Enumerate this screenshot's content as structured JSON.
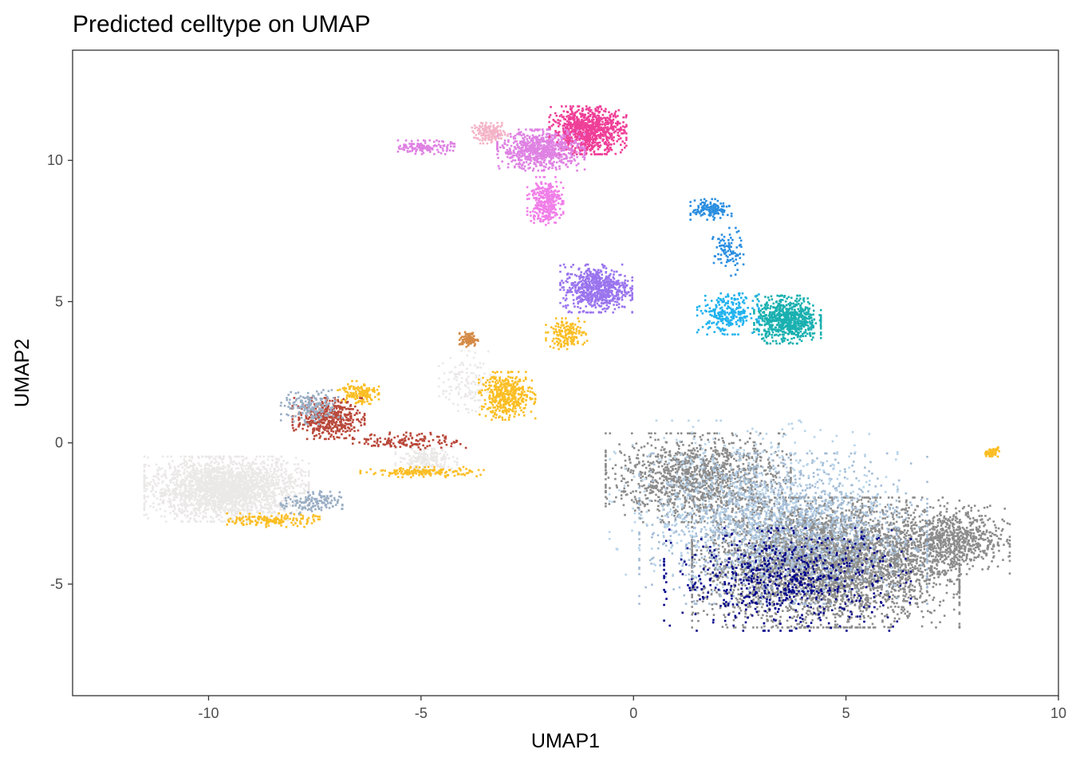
{
  "chart_data": {
    "type": "scatter",
    "title": "Predicted celltype on UMAP",
    "xlabel": "UMAP1",
    "ylabel": "UMAP2",
    "xlim": [
      -13.2,
      10
    ],
    "ylim": [
      -8.95,
      13.9
    ],
    "x_ticks": [
      -10,
      -5,
      0,
      5,
      10
    ],
    "x_tick_labels": [
      "-10",
      "-5",
      "0",
      "5",
      "10"
    ],
    "y_ticks": [
      -5,
      0,
      5,
      10
    ],
    "y_tick_labels": [
      "-5",
      "0",
      "5",
      "10"
    ],
    "grid": false,
    "legend": "none",
    "colors": {
      "light_gray": "#ebe8e8",
      "gray": "#8c8c8c",
      "navy": "#00008b",
      "light_steel_blue": "#a4bcd6",
      "pale_blue": "#b8d4ea",
      "gold": "#fbbe24",
      "brown_red": "#b9483a",
      "orange_brown": "#d58a46",
      "slate_gray": "#9aaec4",
      "medium_purple": "#9a74ee",
      "pink": "#ef3f98",
      "orchid": "#df82e3",
      "light_pink": "#f4b4c8",
      "hot_pink": "#f07ee8",
      "teal": "#1ab0b0",
      "deep_sky_blue": "#20b2ee",
      "dodger_blue": "#2a8ee0"
    },
    "clusters": [
      {
        "color": "light_gray",
        "center": [
          -9.6,
          -1.6
        ],
        "spread": [
          1.6,
          0.95
        ],
        "count": 2400
      },
      {
        "color": "light_gray",
        "center": [
          -4.9,
          -0.6
        ],
        "spread": [
          0.6,
          0.4
        ],
        "count": 220
      },
      {
        "color": "light_gray",
        "center": [
          -4.0,
          2.2
        ],
        "spread": [
          0.5,
          0.9
        ],
        "count": 120
      },
      {
        "color": "gray",
        "center": [
          4.5,
          -4.2
        ],
        "spread": [
          2.6,
          1.9
        ],
        "count": 4200
      },
      {
        "color": "gray",
        "center": [
          1.5,
          -1.2
        ],
        "spread": [
          1.8,
          1.3
        ],
        "count": 1300
      },
      {
        "color": "gray",
        "center": [
          7.5,
          -3.4
        ],
        "spread": [
          1.1,
          1.0
        ],
        "count": 700
      },
      {
        "color": "light_steel_blue",
        "center": [
          3.5,
          -3.0
        ],
        "spread": [
          2.8,
          2.2
        ],
        "count": 1500
      },
      {
        "color": "pale_blue",
        "center": [
          2.8,
          -2.2
        ],
        "spread": [
          2.8,
          2.5
        ],
        "count": 700
      },
      {
        "color": "navy",
        "center": [
          3.6,
          -4.8
        ],
        "spread": [
          2.4,
          1.5
        ],
        "count": 650
      },
      {
        "color": "gold",
        "center": [
          -3.0,
          1.7
        ],
        "spread": [
          0.55,
          0.7
        ],
        "count": 420
      },
      {
        "color": "gold",
        "center": [
          -1.6,
          3.9
        ],
        "spread": [
          0.4,
          0.45
        ],
        "count": 160
      },
      {
        "color": "gold",
        "center": [
          -6.5,
          1.8
        ],
        "spread": [
          0.4,
          0.35
        ],
        "count": 140
      },
      {
        "color": "gold",
        "center": [
          -8.5,
          -2.7
        ],
        "spread": [
          0.9,
          0.2
        ],
        "count": 160
      },
      {
        "color": "gold",
        "center": [
          -5.0,
          -1.0
        ],
        "spread": [
          1.2,
          0.15
        ],
        "count": 160
      },
      {
        "color": "gold",
        "center": [
          8.4,
          -0.3
        ],
        "spread": [
          0.15,
          0.15
        ],
        "count": 60
      },
      {
        "color": "brown_red",
        "center": [
          -7.2,
          0.9
        ],
        "spread": [
          0.7,
          0.6
        ],
        "count": 420
      },
      {
        "color": "brown_red",
        "center": [
          -5.3,
          0.1
        ],
        "spread": [
          1.1,
          0.25
        ],
        "count": 140
      },
      {
        "color": "slate_gray",
        "center": [
          -7.6,
          1.3
        ],
        "spread": [
          0.6,
          0.5
        ],
        "count": 180
      },
      {
        "color": "slate_gray",
        "center": [
          -7.6,
          -2.1
        ],
        "spread": [
          0.6,
          0.35
        ],
        "count": 140
      },
      {
        "color": "orange_brown",
        "center": [
          -3.9,
          3.7
        ],
        "spread": [
          0.18,
          0.22
        ],
        "count": 90
      },
      {
        "color": "medium_purple",
        "center": [
          -0.9,
          5.5
        ],
        "spread": [
          0.7,
          0.7
        ],
        "count": 650
      },
      {
        "color": "teal",
        "center": [
          3.6,
          4.4
        ],
        "spread": [
          0.65,
          0.7
        ],
        "count": 700
      },
      {
        "color": "deep_sky_blue",
        "center": [
          2.2,
          4.6
        ],
        "spread": [
          0.6,
          0.6
        ],
        "count": 260
      },
      {
        "color": "dodger_blue",
        "center": [
          1.8,
          8.3
        ],
        "spread": [
          0.4,
          0.3
        ],
        "count": 140
      },
      {
        "color": "dodger_blue",
        "center": [
          2.2,
          6.8
        ],
        "spread": [
          0.3,
          0.7
        ],
        "count": 90
      },
      {
        "color": "pink",
        "center": [
          -1.1,
          11.1
        ],
        "spread": [
          0.75,
          0.7
        ],
        "count": 900
      },
      {
        "color": "orchid",
        "center": [
          -2.2,
          10.4
        ],
        "spread": [
          0.85,
          0.6
        ],
        "count": 700
      },
      {
        "color": "light_pink",
        "center": [
          -3.4,
          11.0
        ],
        "spread": [
          0.35,
          0.3
        ],
        "count": 160
      },
      {
        "color": "hot_pink",
        "center": [
          -2.1,
          8.6
        ],
        "spread": [
          0.35,
          0.7
        ],
        "count": 320
      },
      {
        "color": "orchid",
        "center": [
          -4.9,
          10.5
        ],
        "spread": [
          0.55,
          0.2
        ],
        "count": 140
      }
    ]
  }
}
